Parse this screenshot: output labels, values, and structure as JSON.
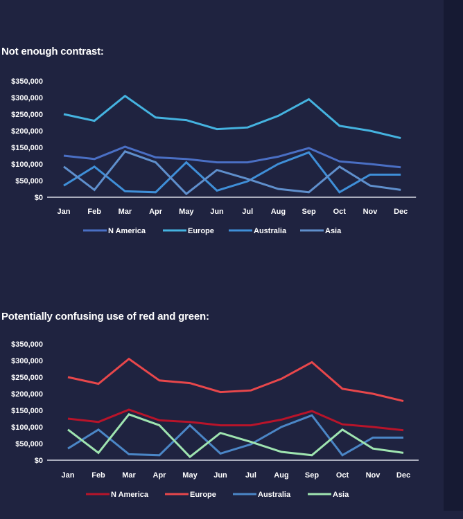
{
  "colors": {
    "background": "#1f2340",
    "axis": "#ffffff"
  },
  "chart_data": [
    {
      "type": "line",
      "title": "Not enough contrast:",
      "categories": [
        "Jan",
        "Feb",
        "Mar",
        "Apr",
        "May",
        "Jun",
        "Jul",
        "Aug",
        "Sep",
        "Oct",
        "Nov",
        "Dec"
      ],
      "y_ticks": [
        "$0",
        "$50,000",
        "$100,000",
        "$150,000",
        "$200,000",
        "$250,000",
        "$300,000",
        "$350,000"
      ],
      "ylim": [
        0,
        350000
      ],
      "grid": false,
      "legend_position": "bottom",
      "series": [
        {
          "name": "N America",
          "color": "#4a6fc4",
          "values": [
            125000,
            115000,
            152000,
            120000,
            115000,
            105000,
            105000,
            122000,
            148000,
            108000,
            100000,
            90000
          ]
        },
        {
          "name": "Europe",
          "color": "#45b3e0",
          "values": [
            250000,
            230000,
            305000,
            240000,
            232000,
            205000,
            210000,
            245000,
            295000,
            215000,
            200000,
            178000
          ]
        },
        {
          "name": "Australia",
          "color": "#3f8fd8",
          "values": [
            35000,
            92000,
            18000,
            15000,
            105000,
            20000,
            48000,
            100000,
            135000,
            15000,
            68000,
            68000
          ]
        },
        {
          "name": "Asia",
          "color": "#5f8fcc",
          "values": [
            92000,
            22000,
            138000,
            105000,
            10000,
            82000,
            55000,
            25000,
            15000,
            92000,
            35000,
            22000
          ]
        }
      ]
    },
    {
      "type": "line",
      "title": "Potentially confusing use of red and green:",
      "categories": [
        "Jan",
        "Feb",
        "Mar",
        "Apr",
        "May",
        "Jun",
        "Jul",
        "Aug",
        "Sep",
        "Oct",
        "Nov",
        "Dec"
      ],
      "y_ticks": [
        "$0",
        "$50,000",
        "$100,000",
        "$150,000",
        "$200,000",
        "$250,000",
        "$300,000",
        "$350,000"
      ],
      "ylim": [
        0,
        350000
      ],
      "grid": false,
      "legend_position": "bottom",
      "series": [
        {
          "name": "N America",
          "color": "#b8142a",
          "values": [
            125000,
            115000,
            152000,
            120000,
            115000,
            105000,
            105000,
            122000,
            148000,
            108000,
            100000,
            90000
          ]
        },
        {
          "name": "Europe",
          "color": "#e8474b",
          "values": [
            250000,
            230000,
            305000,
            240000,
            232000,
            205000,
            210000,
            245000,
            295000,
            215000,
            200000,
            178000
          ]
        },
        {
          "name": "Australia",
          "color": "#4b86c6",
          "values": [
            35000,
            92000,
            18000,
            15000,
            105000,
            20000,
            48000,
            100000,
            135000,
            15000,
            68000,
            68000
          ]
        },
        {
          "name": "Asia",
          "color": "#9fe4b0",
          "values": [
            92000,
            22000,
            138000,
            105000,
            10000,
            82000,
            55000,
            25000,
            15000,
            92000,
            35000,
            22000
          ]
        }
      ]
    }
  ]
}
